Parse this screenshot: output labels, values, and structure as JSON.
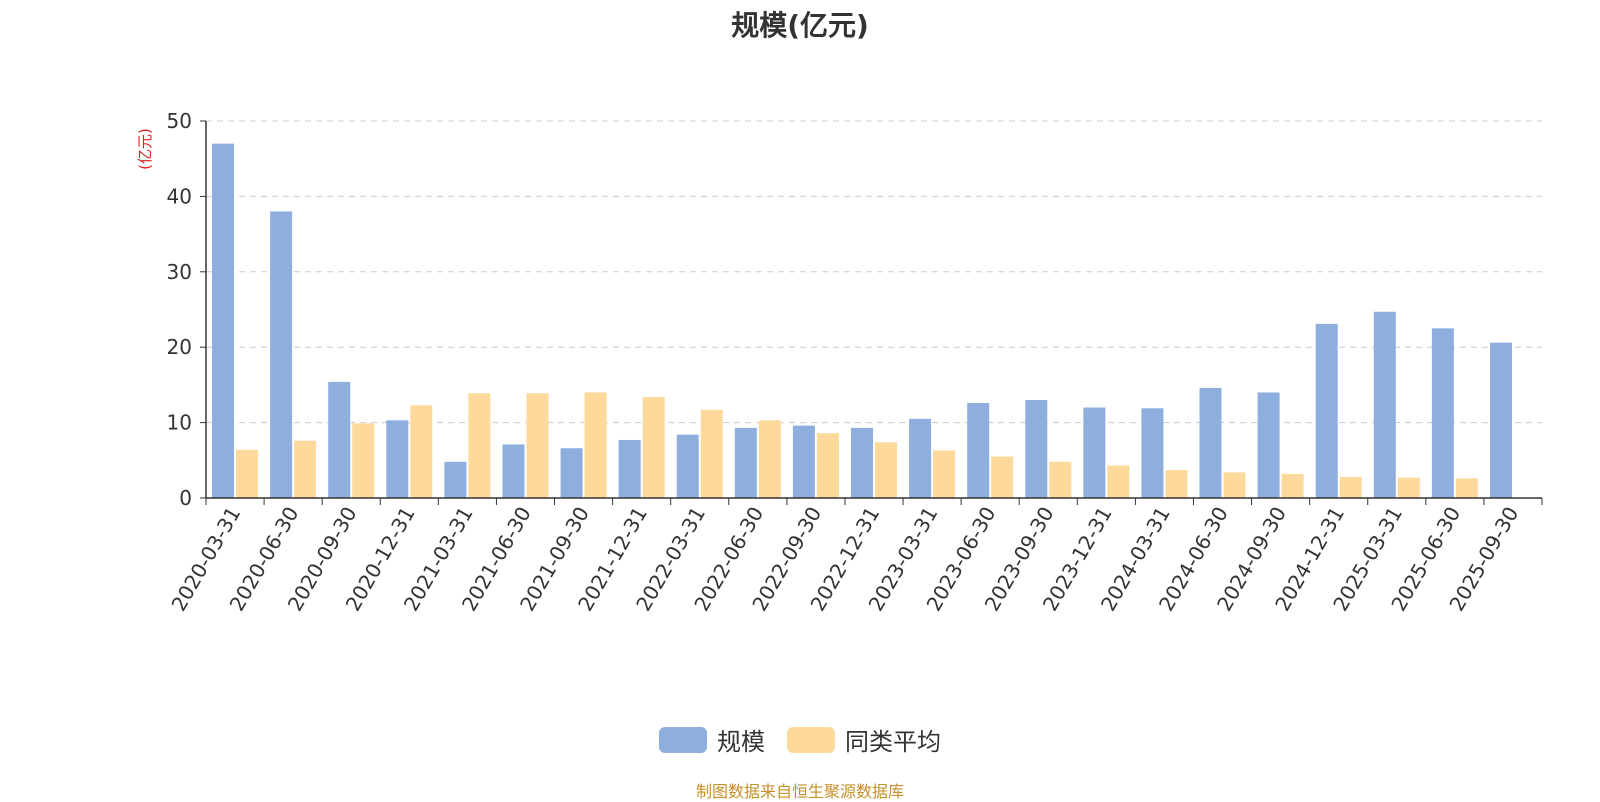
{
  "chart_data": {
    "type": "bar",
    "title": "规模(亿元)",
    "ylabel": "(亿元)",
    "xlabel": "",
    "ylim": [
      0,
      50
    ],
    "yticks": [
      0,
      10,
      20,
      30,
      40,
      50
    ],
    "grid": true,
    "legend_position": "bottom-center",
    "categories": [
      "2020-03-31",
      "2020-06-30",
      "2020-09-30",
      "2020-12-31",
      "2021-03-31",
      "2021-06-30",
      "2021-09-30",
      "2021-12-31",
      "2022-03-31",
      "2022-06-30",
      "2022-09-30",
      "2022-12-31",
      "2023-03-31",
      "2023-06-30",
      "2023-09-30",
      "2023-12-31",
      "2024-03-31",
      "2024-06-30",
      "2024-09-30",
      "2024-12-31",
      "2025-03-31",
      "2025-06-30",
      "2025-09-30"
    ],
    "series": [
      {
        "name": "规模",
        "color": "#8eaedd",
        "values": [
          47.0,
          38.0,
          15.4,
          10.3,
          4.8,
          7.1,
          6.6,
          7.7,
          8.4,
          9.3,
          9.6,
          9.3,
          10.5,
          12.6,
          13.0,
          12.0,
          11.9,
          14.6,
          14.0,
          23.1,
          24.7,
          22.5,
          20.6
        ]
      },
      {
        "name": "同类平均",
        "color": "#fdd99b",
        "values": [
          6.4,
          7.6,
          9.9,
          12.3,
          13.9,
          13.9,
          14.0,
          13.4,
          11.7,
          10.3,
          8.6,
          7.4,
          6.3,
          5.5,
          4.8,
          4.3,
          3.7,
          3.4,
          3.2,
          2.8,
          2.7,
          2.6,
          null
        ]
      }
    ]
  },
  "legend": {
    "items": [
      {
        "label": "规模",
        "color": "#8eaedd"
      },
      {
        "label": "同类平均",
        "color": "#fdd99b"
      }
    ]
  },
  "source": "制图数据来自恒生聚源数据库"
}
